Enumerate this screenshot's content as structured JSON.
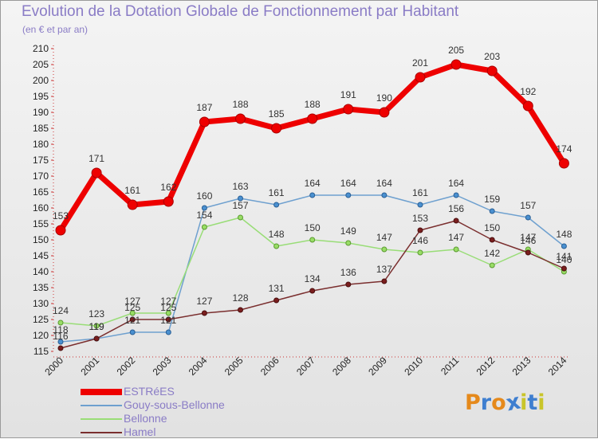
{
  "chart_data": {
    "type": "line",
    "title": "Evolution de la Dotation Globale de Fonctionnement par Habitant",
    "subtitle": "(en € et par an)",
    "categories": [
      "2000",
      "2001",
      "2002",
      "2003",
      "2004",
      "2005",
      "2006",
      "2007",
      "2008",
      "2009",
      "2010",
      "2011",
      "2012",
      "2013",
      "2014"
    ],
    "ylim": [
      115,
      210
    ],
    "yticks": [
      115,
      120,
      125,
      130,
      135,
      140,
      145,
      150,
      155,
      160,
      165,
      170,
      175,
      180,
      185,
      190,
      195,
      200,
      205,
      210
    ],
    "series": [
      {
        "name": "ESTRéES",
        "color": "#ee0000",
        "values": [
          153,
          171,
          161,
          162,
          187,
          188,
          185,
          188,
          191,
          190,
          201,
          205,
          203,
          192,
          174
        ]
      },
      {
        "name": "Gouy-sous-Bellonne",
        "color": "#6ea0cf",
        "values": [
          118,
          119,
          121,
          121,
          160,
          163,
          161,
          164,
          164,
          164,
          161,
          164,
          159,
          157,
          148
        ]
      },
      {
        "name": "Bellonne",
        "color": "#99dd77",
        "values": [
          124,
          123,
          127,
          127,
          154,
          157,
          148,
          150,
          149,
          147,
          146,
          147,
          142,
          147,
          140
        ]
      },
      {
        "name": "Hamel",
        "color": "#7a2e2e",
        "values": [
          116,
          119,
          125,
          125,
          127,
          128,
          131,
          134,
          136,
          137,
          153,
          156,
          150,
          146,
          141
        ]
      }
    ]
  },
  "logo": {
    "letters": [
      "P",
      "r",
      "o",
      "x",
      "i",
      "t",
      "i"
    ],
    "colors": [
      "#e5891b",
      "#3f7fd0",
      "#e5891b",
      "#3f7fd0",
      "#c9c52a",
      "#3f7fd0",
      "#c9c52a"
    ]
  }
}
